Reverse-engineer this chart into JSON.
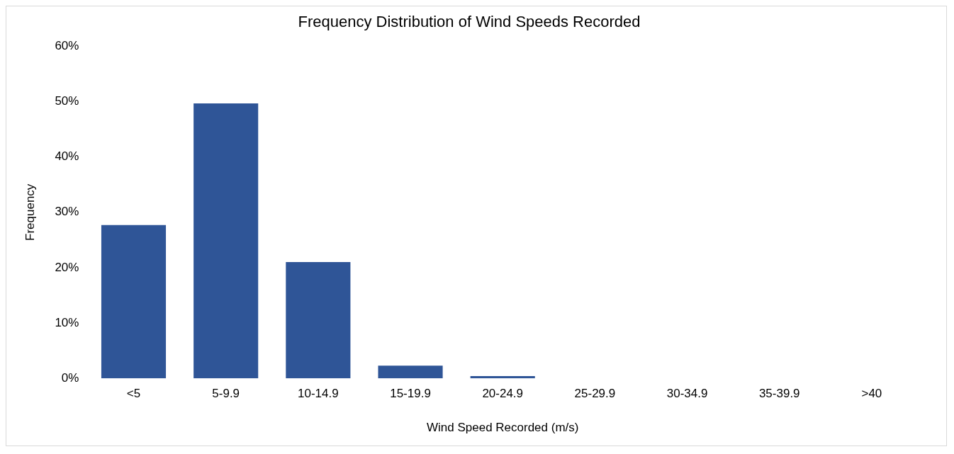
{
  "chart_data": {
    "type": "bar",
    "title": "Frequency Distribution of Wind Speeds Recorded",
    "xlabel": "Wind Speed Recorded (m/s)",
    "ylabel": "Frequency",
    "categories": [
      "<5",
      "5-9.9",
      "10-14.9",
      "15-19.9",
      "20-24.9",
      "25-29.9",
      "30-34.9",
      "35-39.9",
      ">40"
    ],
    "values": [
      27.7,
      49.7,
      21,
      2.3,
      0.4,
      0,
      0,
      0,
      0
    ],
    "color": "#2f5597",
    "ylim": [
      0,
      60
    ],
    "yticks": [
      {
        "value": 0,
        "label": "0%"
      },
      {
        "value": 10,
        "label": "10%"
      },
      {
        "value": 20,
        "label": "20%"
      },
      {
        "value": 30,
        "label": "30%"
      },
      {
        "value": 40,
        "label": "40%"
      },
      {
        "value": 50,
        "label": "50%"
      },
      {
        "value": 60,
        "label": "60%"
      }
    ],
    "grid": false,
    "legend": false
  }
}
